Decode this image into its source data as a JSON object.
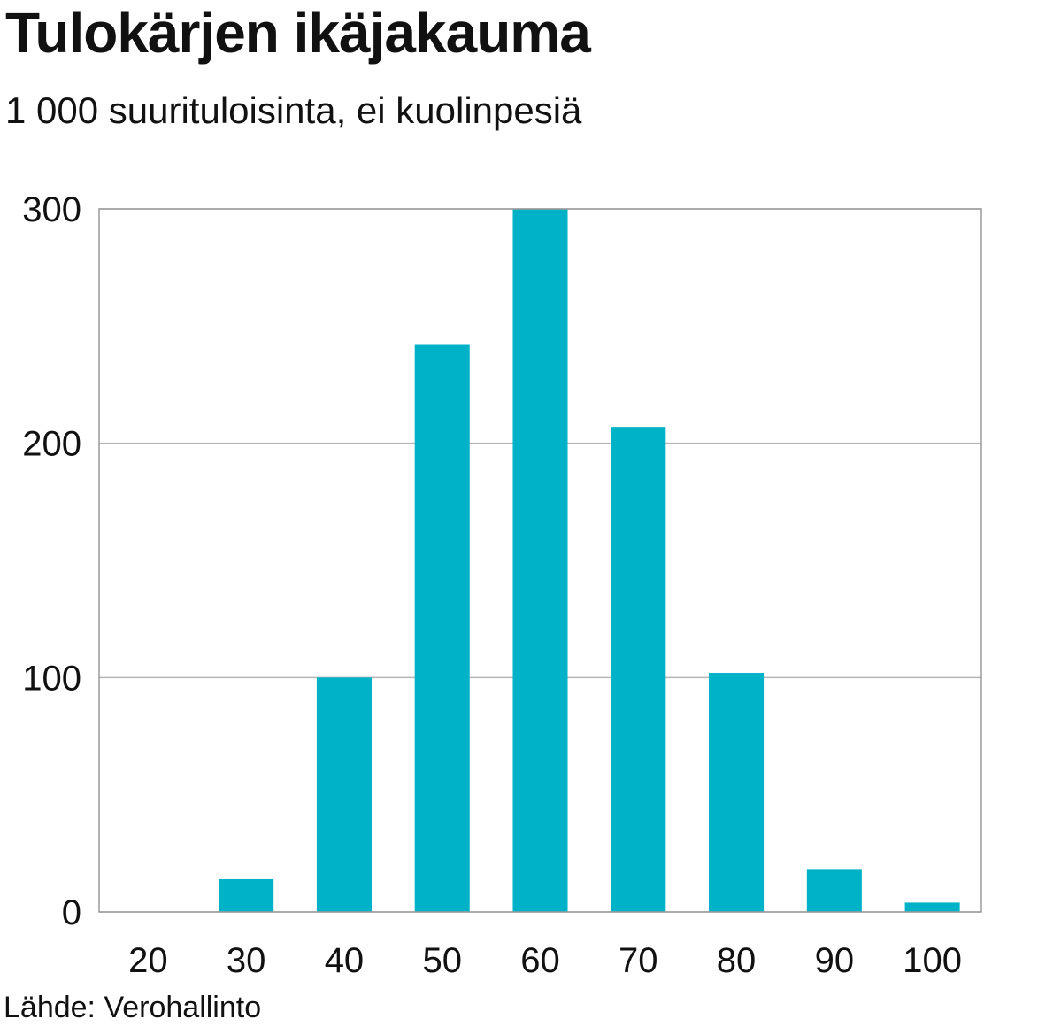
{
  "title": "Tulokärjen ikäjakauma",
  "subtitle": "1 000 suurituloisinta, ei kuolinpesiä",
  "source": "Lähde: Verohallinto",
  "colors": {
    "bar": "#00b2c8",
    "grid": "#b5b5b5",
    "frame": "#9a9a9a",
    "text": "#111111"
  },
  "chart_data": {
    "type": "bar",
    "bins": [
      [
        20,
        30
      ],
      [
        30,
        40
      ],
      [
        40,
        50
      ],
      [
        50,
        60
      ],
      [
        60,
        70
      ],
      [
        70,
        80
      ],
      [
        80,
        90
      ],
      [
        90,
        100
      ]
    ],
    "values": [
      14,
      100,
      242,
      300,
      207,
      102,
      18,
      4
    ],
    "x_ticks": [
      "20",
      "30",
      "40",
      "50",
      "60",
      "70",
      "80",
      "90",
      "100"
    ],
    "y_ticks": [
      "0",
      "100",
      "200",
      "300"
    ],
    "ylim": [
      0,
      300
    ],
    "xlim": [
      10,
      100
    ],
    "grid": "horizontal",
    "xlabel": "",
    "ylabel": ""
  }
}
